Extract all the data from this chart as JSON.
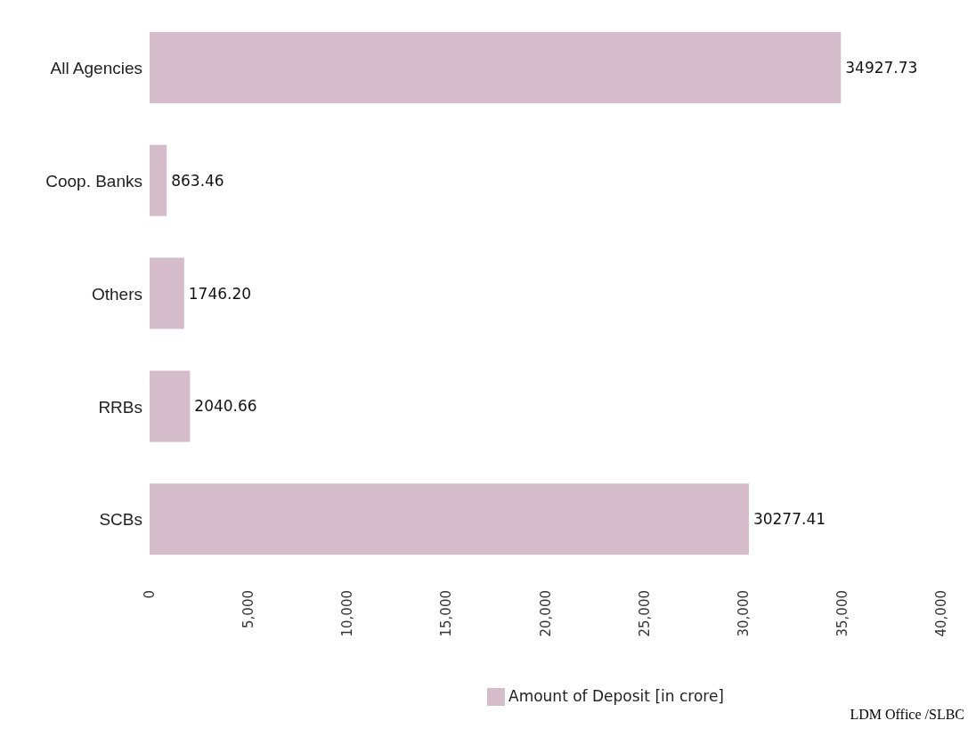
{
  "chart_data": {
    "type": "bar",
    "orientation": "horizontal",
    "categories": [
      "All Agencies",
      "Coop. Banks",
      "Others",
      "RRBs",
      "SCBs"
    ],
    "series": [
      {
        "name": "Amount of Deposit [in crore]",
        "color": "#d5bccb",
        "values": [
          34927.73,
          863.46,
          1746.2,
          2040.66,
          30277.41
        ],
        "value_labels": [
          "34927.73",
          "863.46",
          "1746.20",
          "2040.66",
          "30277.41"
        ]
      }
    ],
    "xlim": [
      0,
      40000
    ],
    "xticks": [
      {
        "value": 0,
        "label": "0"
      },
      {
        "value": 5000,
        "label": "5,000"
      },
      {
        "value": 10000,
        "label": "10,000"
      },
      {
        "value": 15000,
        "label": "15,000"
      },
      {
        "value": 20000,
        "label": "20,000"
      },
      {
        "value": 25000,
        "label": "25,000"
      },
      {
        "value": 30000,
        "label": "30,000"
      },
      {
        "value": 35000,
        "label": "35,000"
      },
      {
        "value": 40000,
        "label": "40,000"
      }
    ],
    "grid": false,
    "legend": "bottom",
    "annotations": [
      "LDM Office /SLBC"
    ]
  }
}
